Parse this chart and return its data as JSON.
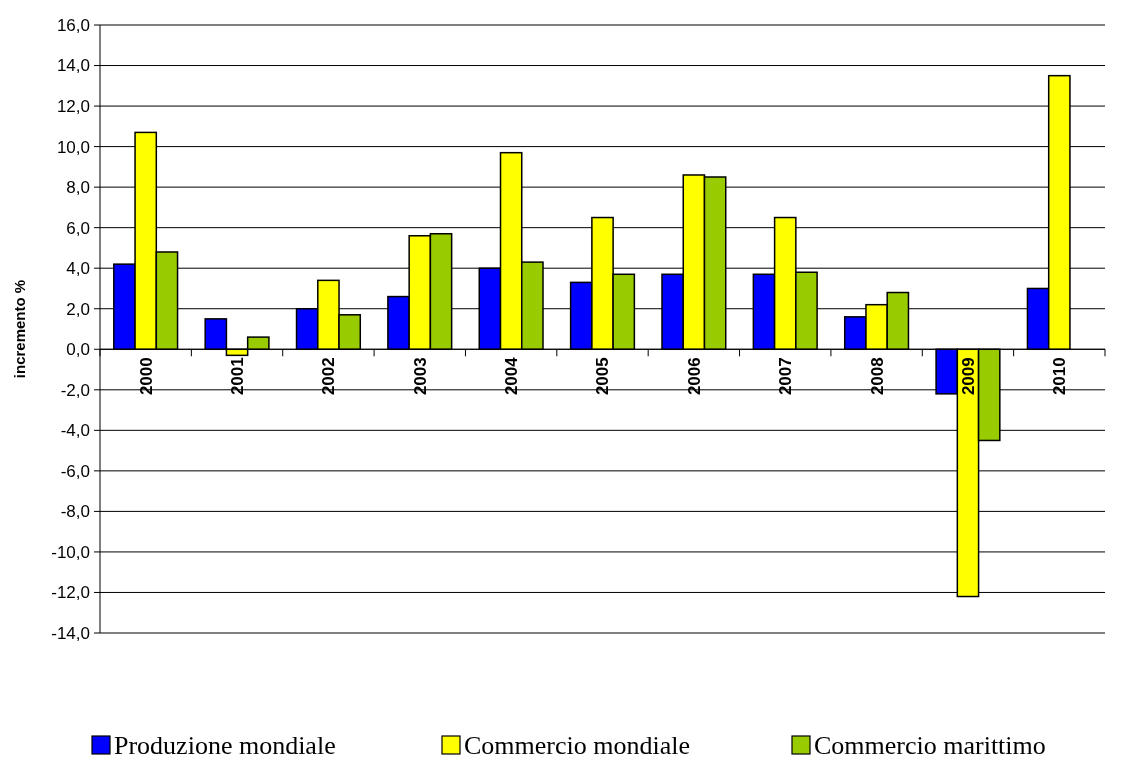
{
  "chart_data": {
    "type": "bar",
    "ylabel": "incremento %",
    "categories": [
      "2000",
      "2001",
      "2002",
      "2003",
      "2004",
      "2005",
      "2006",
      "2007",
      "2008",
      "2009",
      "2010"
    ],
    "series": [
      {
        "name": "Produzione mondiale",
        "color": "#0000ff",
        "values": [
          4.2,
          1.5,
          2.0,
          2.6,
          4.0,
          3.3,
          3.7,
          3.7,
          1.6,
          -2.2,
          3.0
        ]
      },
      {
        "name": "Commercio mondiale",
        "color": "#ffff00",
        "values": [
          10.7,
          -0.3,
          3.4,
          5.6,
          9.7,
          6.5,
          8.6,
          6.5,
          2.2,
          -12.2,
          13.5
        ]
      },
      {
        "name": "Commercio marittimo",
        "color": "#99cc00",
        "values": [
          4.8,
          0.6,
          1.7,
          5.7,
          4.3,
          3.7,
          8.5,
          3.8,
          2.8,
          -4.5,
          null
        ]
      }
    ],
    "ylim": [
      -14,
      16
    ],
    "yticks": [
      {
        "value": -14,
        "label": "-14,0"
      },
      {
        "value": -12,
        "label": "-12,0"
      },
      {
        "value": -10,
        "label": "-10,0"
      },
      {
        "value": -8,
        "label": "-8,0"
      },
      {
        "value": -6,
        "label": "-6,0"
      },
      {
        "value": -4,
        "label": "-4,0"
      },
      {
        "value": -2,
        "label": "-2,0"
      },
      {
        "value": 0,
        "label": "0,0"
      },
      {
        "value": 2,
        "label": "2,0"
      },
      {
        "value": 4,
        "label": "4,0"
      },
      {
        "value": 6,
        "label": "6,0"
      },
      {
        "value": 8,
        "label": "8,0"
      },
      {
        "value": 10,
        "label": "10,0"
      },
      {
        "value": 12,
        "label": "12,0"
      },
      {
        "value": 14,
        "label": "14,0"
      },
      {
        "value": 16,
        "label": "16,0"
      }
    ],
    "grid": "y",
    "legend": "bottom"
  }
}
